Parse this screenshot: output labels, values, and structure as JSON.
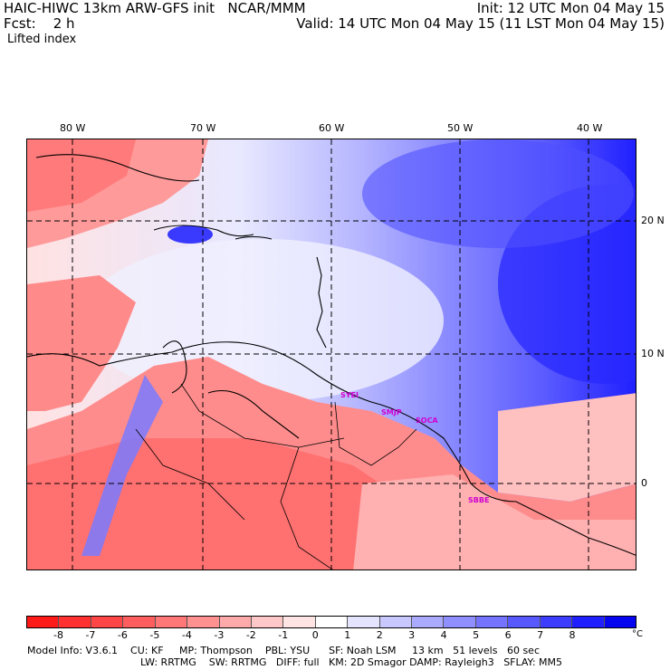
{
  "header": {
    "line1_left": "HAIC-HIWC 13km ARW-GFS init   NCAR/MMM",
    "line1_right": "Init: 12 UTC Mon 04 May 15",
    "line2_left": "Fcst:    2 h",
    "line2_right": "Valid: 14 UTC Mon 04 May 15 (11 LST Mon 04 May 15)",
    "field_name": "Lifted index"
  },
  "map": {
    "lon_labels": [
      "80 W",
      "70 W",
      "60 W",
      "50 W",
      "40 W"
    ],
    "lat_labels": [
      "20 N",
      "10 N",
      "0"
    ],
    "stations": [
      "SYEI",
      "SMJP",
      "SOCA",
      "SBBE"
    ]
  },
  "colorbar": {
    "colors": [
      "#ff1a1a",
      "#ff3030",
      "#ff4646",
      "#ff5e5e",
      "#ff7777",
      "#ff9191",
      "#ffaaaa",
      "#ffc8c8",
      "#ffe4e4",
      "#ffffff",
      "#e4e4ff",
      "#c8c8ff",
      "#aaaaff",
      "#8f8fff",
      "#7474ff",
      "#5858ff",
      "#3c3cff",
      "#2020ff",
      "#0505f0"
    ],
    "ticks": [
      "-8",
      "-7",
      "-6",
      "-5",
      "-4",
      "-3",
      "-2",
      "-1",
      "0",
      "1",
      "2",
      "3",
      "4",
      "5",
      "6",
      "7",
      "8"
    ],
    "unit": "°C"
  },
  "footer": {
    "line1": "Model Info: V3.6.1    CU: KF     MP: Thompson    PBL: YSU      SF: Noah LSM     13 km   51 levels   60 sec",
    "line2": "LW: RRTMG    SW: RRTMG   DIFF: full   KM: 2D Smagor DAMP: Rayleigh3   SFLAY: MM5"
  }
}
